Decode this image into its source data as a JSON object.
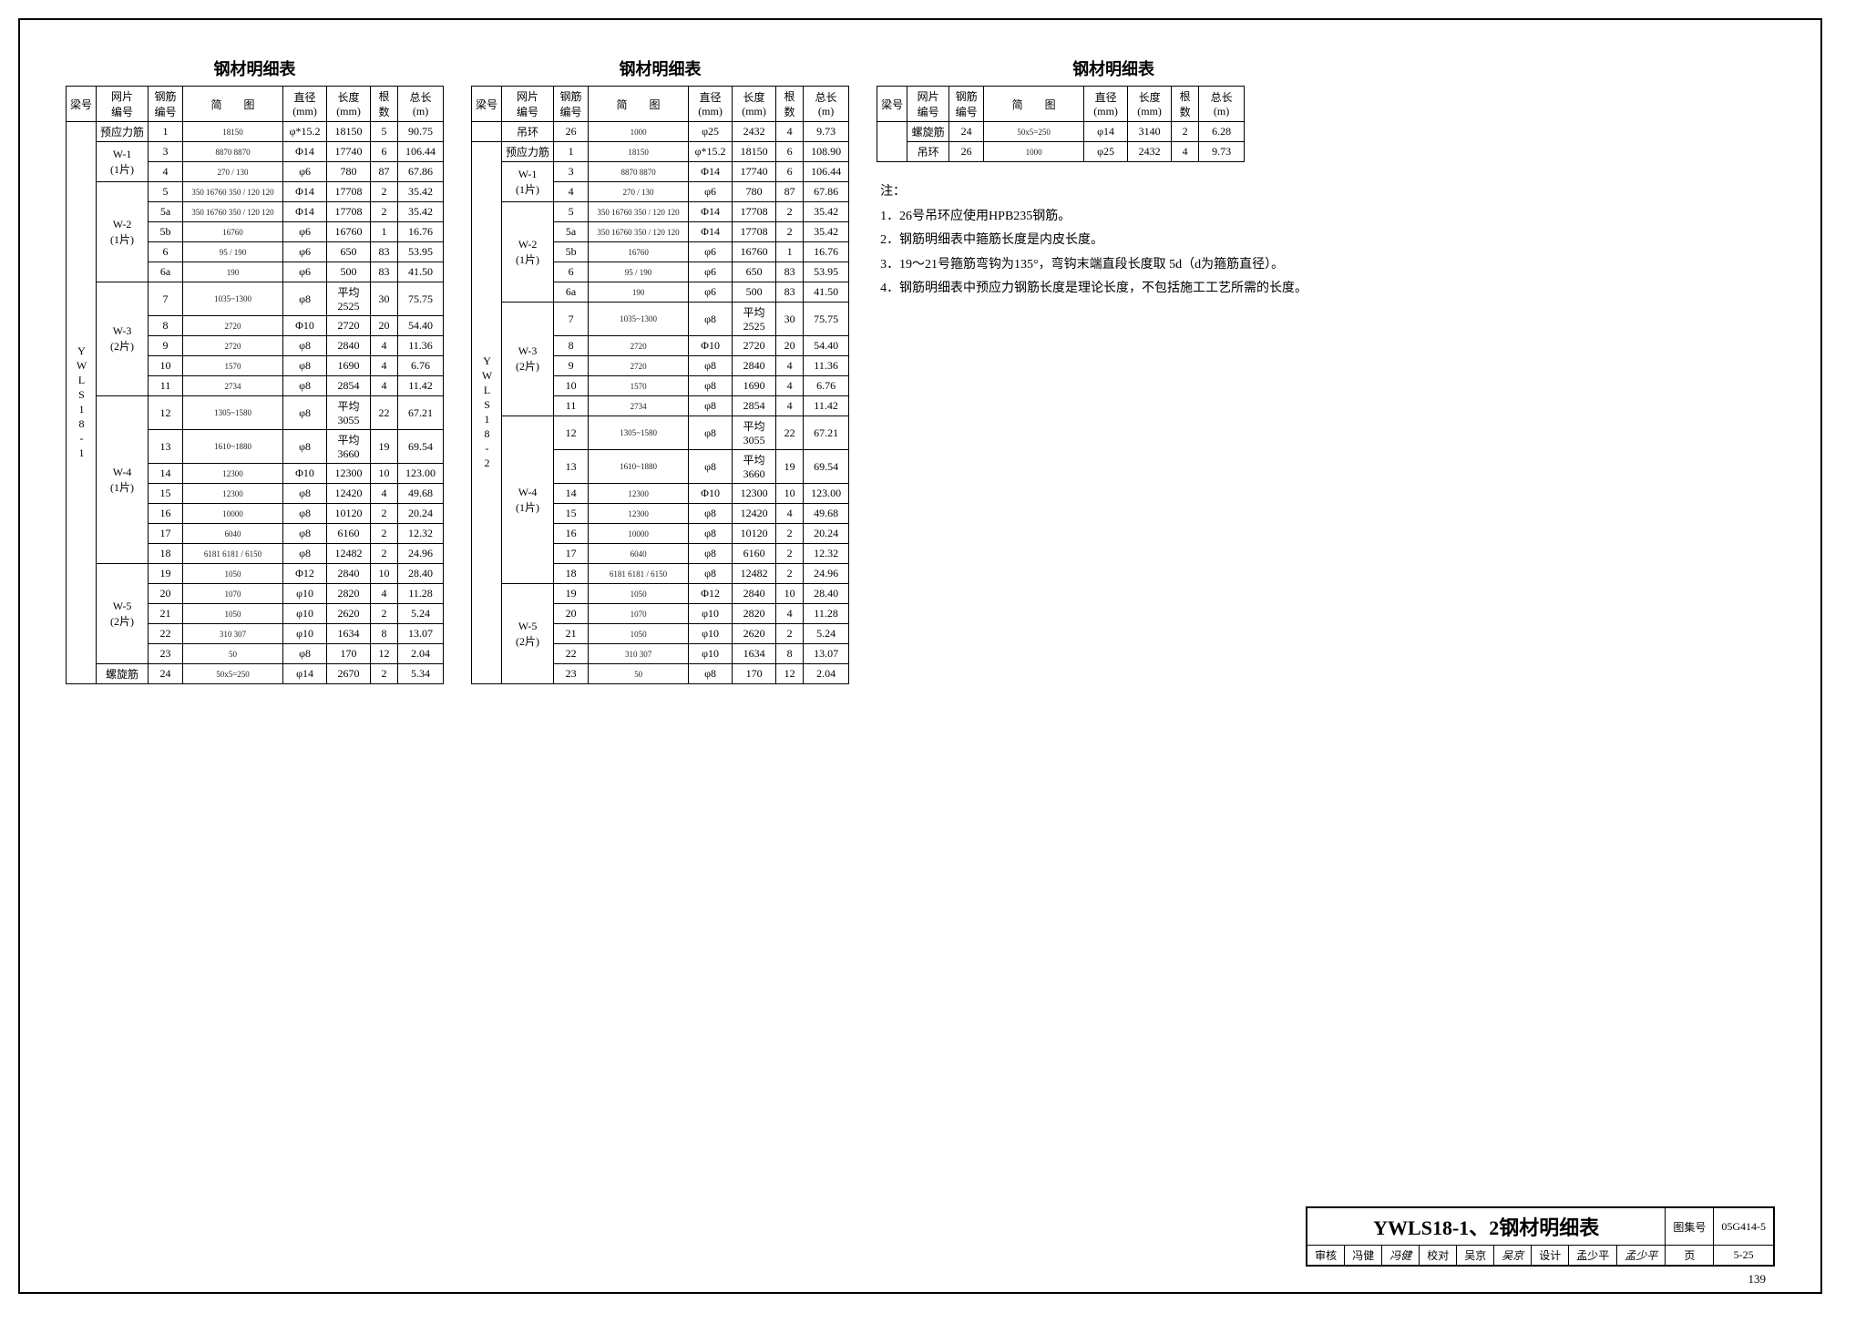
{
  "tableTitle": "钢材明细表",
  "headers": {
    "beam": "梁号",
    "panel": "网片\n编号",
    "rebar": "钢筋\n编号",
    "diagram": "简　　图",
    "diameter": "直径\n(mm)",
    "length": "长度\n(mm)",
    "count": "根\n数",
    "total": "总长\n(m)"
  },
  "beam1": "YWLS18-1",
  "beam2": "YWLS18-2",
  "t1": {
    "groups": [
      {
        "panel": "预应力筋",
        "rows": [
          {
            "rn": "1",
            "dia": "18150",
            "d": "φ*15.2",
            "len": "18150",
            "cnt": "5",
            "tot": "90.75"
          }
        ]
      },
      {
        "panel": "W-1\n(1片)",
        "rows": [
          {
            "rn": "3",
            "dia": "8870  8870",
            "d": "Φ14",
            "len": "17740",
            "cnt": "6",
            "tot": "106.44"
          },
          {
            "rn": "4",
            "dia": "270 / 130",
            "d": "φ6",
            "len": "780",
            "cnt": "87",
            "tot": "67.86"
          }
        ]
      },
      {
        "panel": "W-2\n(1片)",
        "rows": [
          {
            "rn": "5",
            "dia": "350 16760 350 / 120 120",
            "d": "Φ14",
            "len": "17708",
            "cnt": "2",
            "tot": "35.42"
          },
          {
            "rn": "5a",
            "dia": "350 16760 350 / 120 120",
            "d": "Φ14",
            "len": "17708",
            "cnt": "2",
            "tot": "35.42"
          },
          {
            "rn": "5b",
            "dia": "16760",
            "d": "φ6",
            "len": "16760",
            "cnt": "1",
            "tot": "16.76"
          },
          {
            "rn": "6",
            "dia": "95 / 190",
            "d": "φ6",
            "len": "650",
            "cnt": "83",
            "tot": "53.95"
          },
          {
            "rn": "6a",
            "dia": "190",
            "d": "φ6",
            "len": "500",
            "cnt": "83",
            "tot": "41.50"
          }
        ]
      },
      {
        "panel": "W-3\n(2片)",
        "rows": [
          {
            "rn": "7",
            "dia": "1035~1300",
            "d": "φ8",
            "len": "平均\n2525",
            "cnt": "30",
            "tot": "75.75"
          },
          {
            "rn": "8",
            "dia": "2720",
            "d": "Φ10",
            "len": "2720",
            "cnt": "20",
            "tot": "54.40"
          },
          {
            "rn": "9",
            "dia": "2720",
            "d": "φ8",
            "len": "2840",
            "cnt": "4",
            "tot": "11.36"
          },
          {
            "rn": "10",
            "dia": "1570",
            "d": "φ8",
            "len": "1690",
            "cnt": "4",
            "tot": "6.76"
          },
          {
            "rn": "11",
            "dia": "2734",
            "d": "φ8",
            "len": "2854",
            "cnt": "4",
            "tot": "11.42"
          }
        ]
      },
      {
        "panel": "W-4\n(1片)",
        "rows": [
          {
            "rn": "12",
            "dia": "1305~1580",
            "d": "φ8",
            "len": "平均\n3055",
            "cnt": "22",
            "tot": "67.21"
          },
          {
            "rn": "13",
            "dia": "1610~1880",
            "d": "φ8",
            "len": "平均\n3660",
            "cnt": "19",
            "tot": "69.54"
          },
          {
            "rn": "14",
            "dia": "12300",
            "d": "Φ10",
            "len": "12300",
            "cnt": "10",
            "tot": "123.00"
          },
          {
            "rn": "15",
            "dia": "12300",
            "d": "φ8",
            "len": "12420",
            "cnt": "4",
            "tot": "49.68"
          },
          {
            "rn": "16",
            "dia": "10000",
            "d": "φ8",
            "len": "10120",
            "cnt": "2",
            "tot": "20.24"
          },
          {
            "rn": "17",
            "dia": "6040",
            "d": "φ8",
            "len": "6160",
            "cnt": "2",
            "tot": "12.32"
          },
          {
            "rn": "18",
            "dia": "6181 6181 / 6150",
            "d": "φ8",
            "len": "12482",
            "cnt": "2",
            "tot": "24.96"
          }
        ]
      },
      {
        "panel": "W-5\n(2片)",
        "rows": [
          {
            "rn": "19",
            "dia": "1050",
            "d": "Φ12",
            "len": "2840",
            "cnt": "10",
            "tot": "28.40"
          },
          {
            "rn": "20",
            "dia": "1070",
            "d": "φ10",
            "len": "2820",
            "cnt": "4",
            "tot": "11.28"
          },
          {
            "rn": "21",
            "dia": "1050",
            "d": "φ10",
            "len": "2620",
            "cnt": "2",
            "tot": "5.24"
          },
          {
            "rn": "22",
            "dia": "310 307",
            "d": "φ10",
            "len": "1634",
            "cnt": "8",
            "tot": "13.07"
          },
          {
            "rn": "23",
            "dia": "50",
            "d": "φ8",
            "len": "170",
            "cnt": "12",
            "tot": "2.04"
          }
        ]
      },
      {
        "panel": "螺旋筋",
        "rows": [
          {
            "rn": "24",
            "dia": "50x5=250",
            "d": "φ14",
            "len": "2670",
            "cnt": "2",
            "tot": "5.34"
          }
        ]
      }
    ]
  },
  "t2": {
    "top": [
      {
        "pn": "吊环",
        "rn": "26",
        "dia": "1000",
        "d": "φ25",
        "len": "2432",
        "cnt": "4",
        "tot": "9.73"
      }
    ],
    "groups": [
      {
        "panel": "预应力筋",
        "rows": [
          {
            "rn": "1",
            "dia": "18150",
            "d": "φ*15.2",
            "len": "18150",
            "cnt": "6",
            "tot": "108.90"
          }
        ]
      },
      {
        "panel": "W-1\n(1片)",
        "rows": [
          {
            "rn": "3",
            "dia": "8870  8870",
            "d": "Φ14",
            "len": "17740",
            "cnt": "6",
            "tot": "106.44"
          },
          {
            "rn": "4",
            "dia": "270 / 130",
            "d": "φ6",
            "len": "780",
            "cnt": "87",
            "tot": "67.86"
          }
        ]
      },
      {
        "panel": "W-2\n(1片)",
        "rows": [
          {
            "rn": "5",
            "dia": "350 16760 350 / 120 120",
            "d": "Φ14",
            "len": "17708",
            "cnt": "2",
            "tot": "35.42"
          },
          {
            "rn": "5a",
            "dia": "350 16760 350 / 120 120",
            "d": "Φ14",
            "len": "17708",
            "cnt": "2",
            "tot": "35.42"
          },
          {
            "rn": "5b",
            "dia": "16760",
            "d": "φ6",
            "len": "16760",
            "cnt": "1",
            "tot": "16.76"
          },
          {
            "rn": "6",
            "dia": "95 / 190",
            "d": "φ6",
            "len": "650",
            "cnt": "83",
            "tot": "53.95"
          },
          {
            "rn": "6a",
            "dia": "190",
            "d": "φ6",
            "len": "500",
            "cnt": "83",
            "tot": "41.50"
          }
        ]
      },
      {
        "panel": "W-3\n(2片)",
        "rows": [
          {
            "rn": "7",
            "dia": "1035~1300",
            "d": "φ8",
            "len": "平均\n2525",
            "cnt": "30",
            "tot": "75.75"
          },
          {
            "rn": "8",
            "dia": "2720",
            "d": "Φ10",
            "len": "2720",
            "cnt": "20",
            "tot": "54.40"
          },
          {
            "rn": "9",
            "dia": "2720",
            "d": "φ8",
            "len": "2840",
            "cnt": "4",
            "tot": "11.36"
          },
          {
            "rn": "10",
            "dia": "1570",
            "d": "φ8",
            "len": "1690",
            "cnt": "4",
            "tot": "6.76"
          },
          {
            "rn": "11",
            "dia": "2734",
            "d": "φ8",
            "len": "2854",
            "cnt": "4",
            "tot": "11.42"
          }
        ]
      },
      {
        "panel": "W-4\n(1片)",
        "rows": [
          {
            "rn": "12",
            "dia": "1305~1580",
            "d": "φ8",
            "len": "平均\n3055",
            "cnt": "22",
            "tot": "67.21"
          },
          {
            "rn": "13",
            "dia": "1610~1880",
            "d": "φ8",
            "len": "平均\n3660",
            "cnt": "19",
            "tot": "69.54"
          },
          {
            "rn": "14",
            "dia": "12300",
            "d": "Φ10",
            "len": "12300",
            "cnt": "10",
            "tot": "123.00"
          },
          {
            "rn": "15",
            "dia": "12300",
            "d": "φ8",
            "len": "12420",
            "cnt": "4",
            "tot": "49.68"
          },
          {
            "rn": "16",
            "dia": "10000",
            "d": "φ8",
            "len": "10120",
            "cnt": "2",
            "tot": "20.24"
          },
          {
            "rn": "17",
            "dia": "6040",
            "d": "φ8",
            "len": "6160",
            "cnt": "2",
            "tot": "12.32"
          },
          {
            "rn": "18",
            "dia": "6181 6181 / 6150",
            "d": "φ8",
            "len": "12482",
            "cnt": "2",
            "tot": "24.96"
          }
        ]
      },
      {
        "panel": "W-5\n(2片)",
        "rows": [
          {
            "rn": "19",
            "dia": "1050",
            "d": "Φ12",
            "len": "2840",
            "cnt": "10",
            "tot": "28.40"
          },
          {
            "rn": "20",
            "dia": "1070",
            "d": "φ10",
            "len": "2820",
            "cnt": "4",
            "tot": "11.28"
          },
          {
            "rn": "21",
            "dia": "1050",
            "d": "φ10",
            "len": "2620",
            "cnt": "2",
            "tot": "5.24"
          },
          {
            "rn": "22",
            "dia": "310 307",
            "d": "φ10",
            "len": "1634",
            "cnt": "8",
            "tot": "13.07"
          },
          {
            "rn": "23",
            "dia": "50",
            "d": "φ8",
            "len": "170",
            "cnt": "12",
            "tot": "2.04"
          }
        ]
      }
    ]
  },
  "t3": {
    "rows": [
      {
        "pn": "螺旋筋",
        "rn": "24",
        "dia": "50x5=250",
        "d": "φ14",
        "len": "3140",
        "cnt": "2",
        "tot": "6.28"
      },
      {
        "pn": "吊环",
        "rn": "26",
        "dia": "1000",
        "d": "φ25",
        "len": "2432",
        "cnt": "4",
        "tot": "9.73"
      }
    ]
  },
  "notes": {
    "title": "注：",
    "items": [
      "1．26号吊环应使用HPB235钢筋。",
      "2．钢筋明细表中箍筋长度是内皮长度。",
      "3．19～21号箍筋弯钩为135°，弯钩末端直段长度取 5d（d为箍筋直径）。",
      "4．钢筋明细表中预应力钢筋长度是理论长度，不包括施工工艺所需的长度。"
    ]
  },
  "titleBlock": {
    "main": "YWLS18-1、2钢材明细表",
    "setLabel": "图集号",
    "setVal": "05G414-5",
    "r": {
      "a1": "审核",
      "a2": "冯健",
      "a3": "冯健",
      "b1": "校对",
      "b2": "吴京",
      "b3": "吴京",
      "c1": "设计",
      "c2": "孟少平",
      "c3": "孟少平",
      "pLabel": "页",
      "pVal": "5-25"
    }
  },
  "pageNumber": "139"
}
